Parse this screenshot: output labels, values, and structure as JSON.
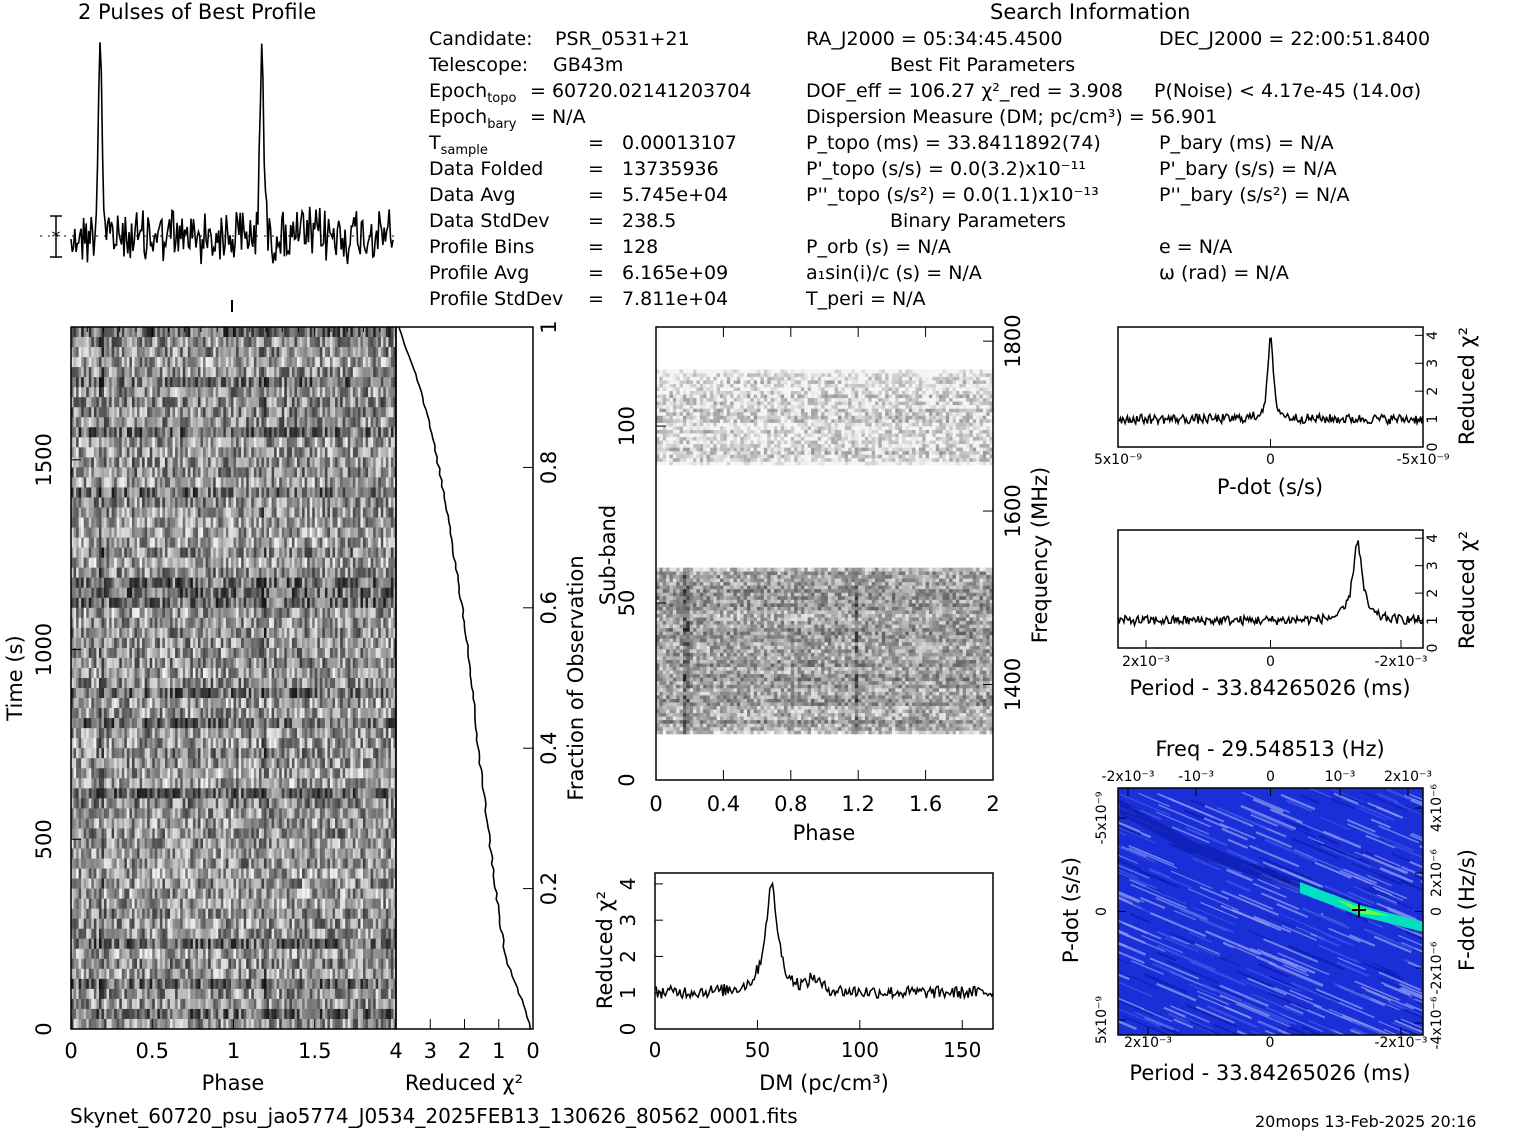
{
  "headers": {
    "profile_title": "2 Pulses of Best Profile",
    "search_title": "Search Information"
  },
  "info_left": [
    {
      "label": "Candidate:",
      "value": "PSR_0531+21"
    },
    {
      "label": "Telescope:",
      "value": "GB43m"
    },
    {
      "label": "Epoch_topo",
      "value": "= 60720.02141203704"
    },
    {
      "label": "Epoch_bary",
      "value": "= N/A"
    },
    {
      "label": "T_sample",
      "value": "0.00013107"
    },
    {
      "label": "Data Folded",
      "value": "13735936"
    },
    {
      "label": "Data Avg",
      "value": "5.745e+04"
    },
    {
      "label": "Data StdDev",
      "value": "238.5"
    },
    {
      "label": "Profile Bins",
      "value": "128"
    },
    {
      "label": "Profile Avg",
      "value": "6.165e+09"
    },
    {
      "label": "Profile StdDev",
      "value": "7.811e+04"
    }
  ],
  "info_mid": {
    "ra": "RA_J2000 = 05:34:45.4500",
    "best_fit": "Best Fit Parameters",
    "dof": "DOF_eff = 106.27  χ²_red = 3.908",
    "pnoise": "P(Noise) < 4.17e-45  (14.0σ)",
    "dm": "Dispersion Measure (DM; pc/cm³) = 56.901",
    "ptopo": "P_topo (ms) =  33.8411892(74)",
    "pdtopo": "P'_topo (s/s) = 0.0(3.2)x10⁻¹¹",
    "pddtopo": "P''_topo (s/s²) = 0.0(1.1)x10⁻¹³",
    "binary": "Binary Parameters",
    "porb": "P_orb (s) = N/A",
    "a1": "a₁sin(i)/c (s) = N/A",
    "tperi": "T_peri = N/A"
  },
  "info_right": {
    "dec": "DEC_J2000 = 22:00:51.8400",
    "pbary": "P_bary (ms) = N/A",
    "pdbary": "P'_bary (s/s) = N/A",
    "pddbary": "P''_bary (s/s²) = N/A",
    "e": "e = N/A",
    "omega": "ω (rad) = N/A"
  },
  "footer": {
    "filename": "Skynet_60720_psu_jao5774_J0534_2025FEB13_130626_80562_0001.fits",
    "stamp": "20mops 13-Feb-2025 20:16"
  },
  "colors": {
    "ink": "#000000",
    "pp_bg": "#1a2fd8",
    "pp_ridge": "#00e0c0"
  },
  "chart_data": [
    {
      "type": "line",
      "id": "profile",
      "title": "2 Pulses of Best Profile",
      "x_range": [
        0,
        2
      ],
      "peaks_phase": [
        0.18,
        1.18
      ],
      "note_symbol": "*"
    },
    {
      "type": "heatmap",
      "id": "time_phase",
      "xlabel": "Phase",
      "ylabel": "Time (s)",
      "x_ticks": [
        "0",
        "0.5",
        "1",
        "1.5"
      ],
      "x_tick_values": [
        0,
        0.5,
        1,
        1.5
      ],
      "y_ticks": [
        "0",
        "500",
        "1000",
        "1500"
      ],
      "y_tick_values": [
        0,
        500,
        1000,
        1500
      ],
      "xlim": [
        0,
        2
      ],
      "ylim": [
        0,
        1850
      ]
    },
    {
      "type": "line",
      "id": "chi_vs_time",
      "xlabel": "Reduced χ²",
      "ylabel": "Fraction of Observation",
      "x_ticks": [
        "4",
        "3",
        "2",
        "1",
        "0"
      ],
      "x_tick_values": [
        4,
        3,
        2,
        1,
        0
      ],
      "y_ticks": [
        "0.2",
        "0.4",
        "0.6",
        "0.8",
        "1"
      ],
      "y_tick_values": [
        0.2,
        0.4,
        0.6,
        0.8,
        1
      ],
      "xlim": [
        4,
        0
      ],
      "ylim": [
        0,
        1
      ],
      "x": [
        0.05,
        0.4,
        0.8,
        1.1,
        1.35,
        1.6,
        1.8,
        2.0,
        2.2,
        2.45,
        2.75,
        3.05,
        3.4,
        3.7,
        3.9
      ],
      "y": [
        0.0,
        0.05,
        0.1,
        0.2,
        0.3,
        0.4,
        0.5,
        0.58,
        0.64,
        0.72,
        0.8,
        0.87,
        0.93,
        0.97,
        1.0
      ]
    },
    {
      "type": "heatmap",
      "id": "subband_phase",
      "xlabel": "Phase",
      "ylabel": "Sub-band",
      "y2label": "Frequency (MHz)",
      "x_ticks": [
        "0",
        "0.4",
        "0.8",
        "1.2",
        "1.6",
        "2"
      ],
      "x_tick_values": [
        0,
        0.4,
        0.8,
        1.2,
        1.6,
        2
      ],
      "y_ticks": [
        "0",
        "50",
        "100"
      ],
      "y_tick_values": [
        0,
        50,
        100
      ],
      "y2_ticks": [
        "1400",
        "1600",
        "1800"
      ],
      "xlim": [
        0,
        2
      ],
      "ylim": [
        0,
        128
      ],
      "bands": [
        [
          13,
          60
        ],
        [
          89,
          116
        ]
      ]
    },
    {
      "type": "line",
      "id": "dm_curve",
      "xlabel": "DM (pc/cm³)",
      "ylabel": "Reduced χ²",
      "x_ticks": [
        "0",
        "50",
        "100",
        "150"
      ],
      "x_tick_values": [
        0,
        50,
        100,
        150
      ],
      "y_ticks": [
        "0",
        "1",
        "2",
        "3",
        "4"
      ],
      "y_tick_values": [
        0,
        1,
        2,
        3,
        4
      ],
      "xlim": [
        0,
        165
      ],
      "ylim": [
        0,
        4.3
      ],
      "peak_x": 56.9,
      "peak_y": 3.9
    },
    {
      "type": "line",
      "id": "pdot_curve",
      "xlabel": "P-dot (s/s)",
      "ylabel": "Reduced χ²",
      "x_ticks": [
        "5x10⁻⁹",
        "0",
        "-5x10⁻⁹"
      ],
      "y_ticks": [
        "0",
        "1",
        "2",
        "3",
        "4"
      ],
      "y_tick_values": [
        0,
        1,
        2,
        3,
        4
      ],
      "xlim": [
        5e-09,
        -5e-09
      ],
      "ylim": [
        0,
        4.3
      ],
      "peak_x": 0,
      "peak_y": 4.0
    },
    {
      "type": "line",
      "id": "period_curve",
      "xlabel": "Period - 33.84265026 (ms)",
      "ylabel": "Reduced χ²",
      "x_ticks": [
        "2x10⁻³",
        "0",
        "-2x10⁻³"
      ],
      "y_ticks": [
        "0",
        "1",
        "2",
        "3",
        "4"
      ],
      "y_tick_values": [
        0,
        1,
        2,
        3,
        4
      ],
      "xlim": [
        0.0025,
        -0.0025
      ],
      "ylim": [
        0,
        4.3
      ],
      "peak_x": -0.0015,
      "peak_y": 3.9
    },
    {
      "type": "heatmap",
      "id": "ppdot_plane",
      "title": "Freq - 29.548513 (Hz)",
      "xlabel": "Period - 33.84265026 (ms)",
      "ylabel": "P-dot (s/s)",
      "y2label": "F-dot (Hz/s)",
      "x_ticks": [
        "2x10⁻³",
        "-2x10⁻³"
      ],
      "x2_ticks": [
        "-2x10⁻³",
        "-10⁻³",
        "0",
        "10⁻³",
        "2x10⁻³"
      ],
      "y_ticks": [
        "-5x10⁻⁹",
        "0",
        "5x10⁻⁹"
      ],
      "y2_ticks": [
        "4x10⁻⁶",
        "2x10⁻⁶",
        "0",
        "-2x10⁻⁶",
        "-4x10⁻⁶"
      ]
    }
  ]
}
